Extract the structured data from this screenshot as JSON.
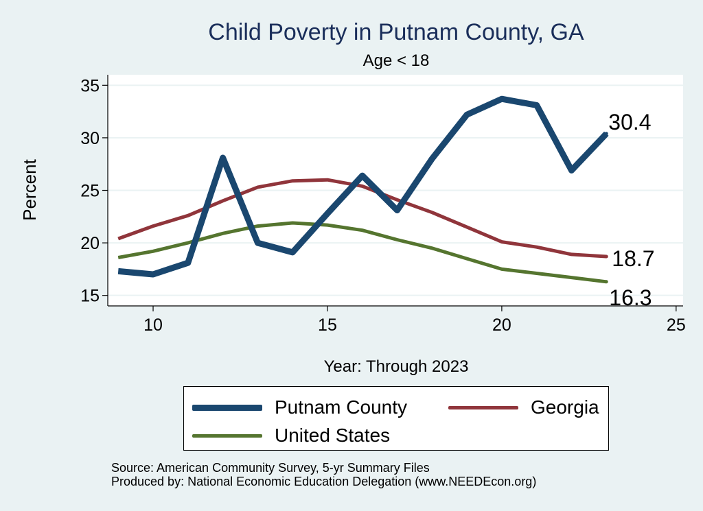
{
  "chart_data": {
    "type": "line",
    "title": "Child Poverty in Putnam County, GA",
    "subtitle": "Age < 18",
    "xlabel": "Year: Through 2023",
    "ylabel": "Percent",
    "xlim": [
      8.7,
      25.2
    ],
    "ylim": [
      14,
      36
    ],
    "xticks": [
      10,
      15,
      20,
      25
    ],
    "yticks": [
      15,
      20,
      25,
      30,
      35
    ],
    "grid": true,
    "legend_position": "bottom",
    "series": [
      {
        "name": "Putnam County",
        "color": "#1a476f",
        "x": [
          9,
          10,
          11,
          12,
          13,
          14,
          15,
          16,
          17,
          18,
          19,
          20,
          21,
          22,
          23
        ],
        "values": [
          17.3,
          17.0,
          18.1,
          28.1,
          20.0,
          19.1,
          22.8,
          26.4,
          23.1,
          28.0,
          32.2,
          33.7,
          33.1,
          26.9,
          30.4
        ],
        "end_label": "30.4"
      },
      {
        "name": "Georgia",
        "color": "#90353b",
        "x": [
          9,
          10,
          11,
          12,
          13,
          14,
          15,
          16,
          17,
          18,
          19,
          20,
          21,
          22,
          23
        ],
        "values": [
          20.4,
          21.6,
          22.6,
          24.0,
          25.3,
          25.9,
          26.0,
          25.4,
          24.1,
          22.9,
          21.5,
          20.1,
          19.6,
          18.9,
          18.7
        ],
        "end_label": "18.7"
      },
      {
        "name": "United States",
        "color": "#55752f",
        "x": [
          9,
          10,
          11,
          12,
          13,
          14,
          15,
          16,
          17,
          18,
          19,
          20,
          21,
          22,
          23
        ],
        "values": [
          18.6,
          19.2,
          20.0,
          20.9,
          21.6,
          21.9,
          21.7,
          21.2,
          20.3,
          19.5,
          18.5,
          17.5,
          17.1,
          16.7,
          16.3
        ],
        "end_label": "16.3"
      }
    ]
  },
  "legend": {
    "items": [
      {
        "label": "Putnam County",
        "color": "#1a476f"
      },
      {
        "label": "Georgia",
        "color": "#90353b"
      },
      {
        "label": "United States",
        "color": "#55752f"
      }
    ]
  },
  "source": {
    "line1": "Source: American Community Survey, 5-yr Summary Files",
    "line2": "Produced by: National Economic Education Delegation (www.NEEDEcon.org)"
  }
}
